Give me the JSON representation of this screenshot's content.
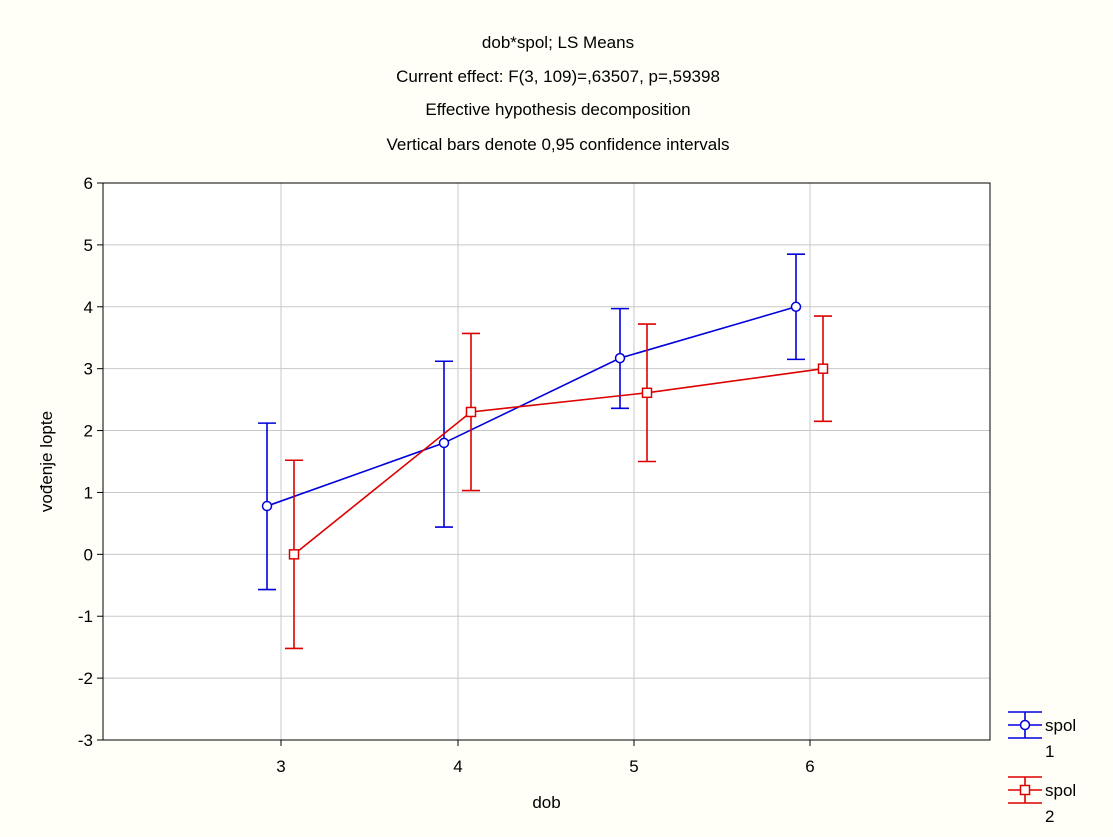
{
  "chart_data": {
    "type": "line",
    "title_lines": [
      "dob*spol; LS Means",
      "Current effect: F(3, 109)=,63507, p=,59398",
      "Effective hypothesis decomposition",
      "Vertical bars denote 0,95 confidence intervals"
    ],
    "xlabel": "dob",
    "ylabel": "vođenje lopte",
    "categories": [
      "3",
      "4",
      "5",
      "6"
    ],
    "ylim": [
      -3,
      6
    ],
    "yticks": [
      -3,
      -2,
      -1,
      0,
      1,
      2,
      3,
      4,
      5,
      6
    ],
    "grid": true,
    "legend_placement": "bottom-right",
    "series": [
      {
        "name": "spol",
        "name_line2": "1",
        "color": "#0000dd",
        "marker": "circle",
        "values": [
          0.78,
          1.8,
          3.17,
          4.0
        ],
        "ci_low": [
          -0.57,
          0.44,
          2.36,
          3.15
        ],
        "ci_high": [
          2.12,
          3.12,
          3.97,
          4.85
        ]
      },
      {
        "name": "spol",
        "name_line2": "2",
        "color": "#dd0000",
        "marker": "square",
        "values": [
          0.0,
          2.3,
          2.61,
          3.0
        ],
        "ci_low": [
          -1.52,
          1.03,
          1.5,
          2.15
        ],
        "ci_high": [
          1.52,
          3.57,
          3.72,
          3.85
        ]
      }
    ]
  }
}
